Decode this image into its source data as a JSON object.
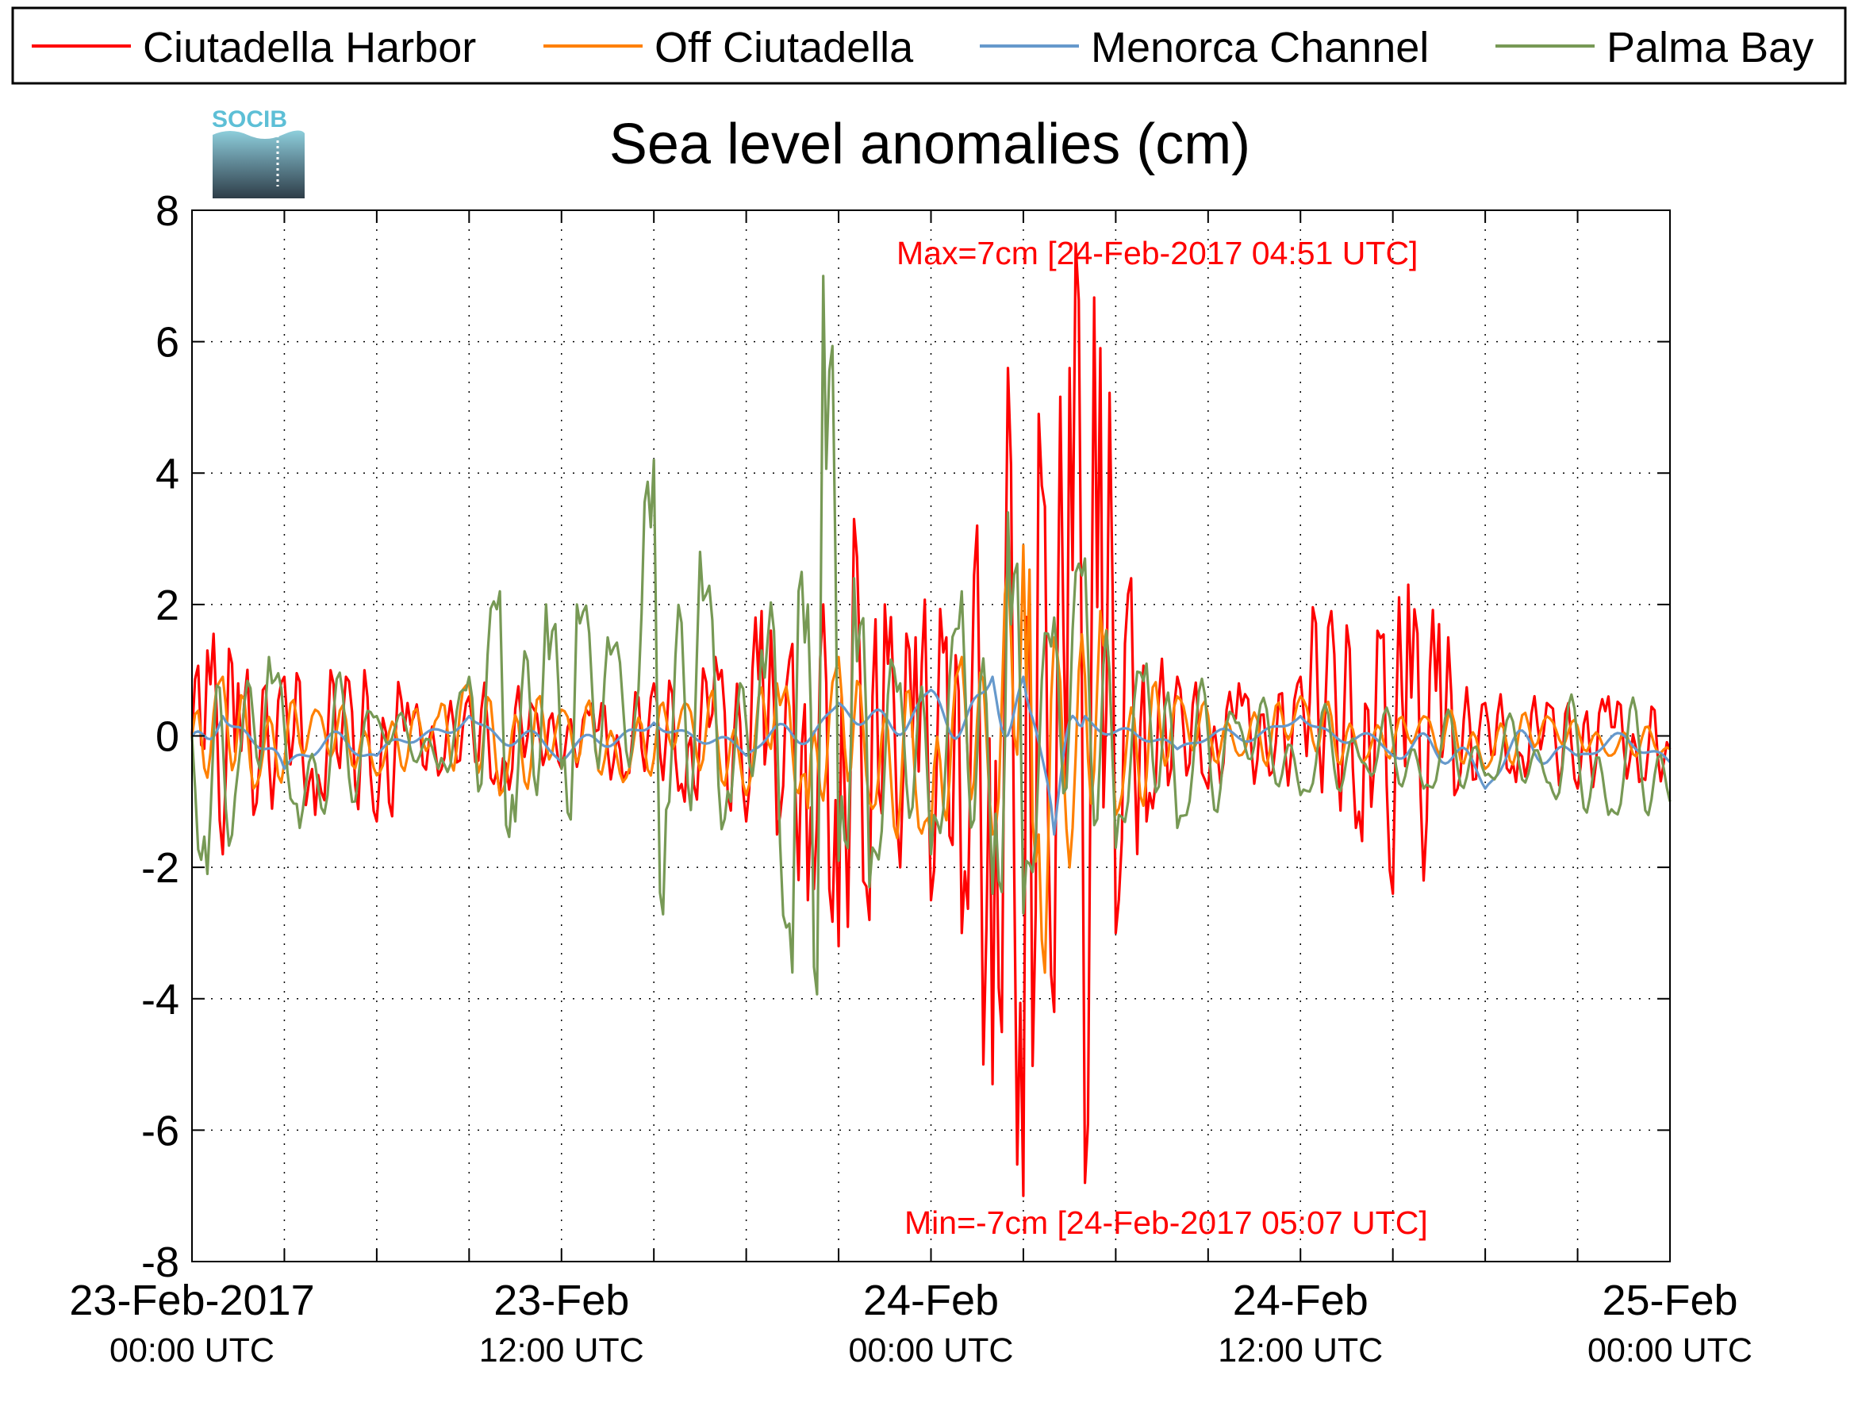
{
  "chart_data": {
    "type": "line",
    "title": "Sea level anomalies (cm)",
    "xlabel": "",
    "ylabel": "",
    "ylim": [
      -8,
      8
    ],
    "xlim": [
      "2017-02-23 00:00 UTC",
      "2017-02-25 00:00 UTC"
    ],
    "yticks": [
      "8",
      "6",
      "4",
      "2",
      "0",
      "-2",
      "-4",
      "-6",
      "-8"
    ],
    "xticks": [
      {
        "date": "23-Feb-2017",
        "time": "00:00 UTC"
      },
      {
        "date": "23-Feb",
        "time": "12:00 UTC"
      },
      {
        "date": "24-Feb",
        "time": "00:00 UTC"
      },
      {
        "date": "24-Feb",
        "time": "12:00 UTC"
      },
      {
        "date": "25-Feb",
        "time": "00:00 UTC"
      }
    ],
    "grid": true,
    "legend_position": "top",
    "annotations": {
      "max": "Max=7cm [24-Feb-2017 04:51 UTC]",
      "min": "Min=-7cm [24-Feb-2017 05:07 UTC]"
    },
    "series": [
      {
        "name": "Ciutadella Harbor",
        "color": "#ff0000",
        "points": [
          [
            "2017-02-23 00:00",
            0.0
          ],
          [
            "2017-02-23 00:30",
            1.3
          ],
          [
            "2017-02-23 01:00",
            -1.8
          ],
          [
            "2017-02-23 01:30",
            0.8
          ],
          [
            "2017-02-23 02:00",
            -1.2
          ],
          [
            "2017-02-23 03:00",
            0.9
          ],
          [
            "2017-02-23 04:00",
            -1.2
          ],
          [
            "2017-02-23 05:00",
            0.9
          ],
          [
            "2017-02-23 06:00",
            -1.3
          ],
          [
            "2017-02-23 07:00",
            0.5
          ],
          [
            "2017-02-23 08:00",
            -0.6
          ],
          [
            "2017-02-23 09:00",
            0.6
          ],
          [
            "2017-02-23 10:00",
            -0.9
          ],
          [
            "2017-02-23 11:00",
            0.5
          ],
          [
            "2017-02-23 12:00",
            -0.5
          ],
          [
            "2017-02-23 13:00",
            0.5
          ],
          [
            "2017-02-23 14:00",
            -0.7
          ],
          [
            "2017-02-23 15:00",
            0.8
          ],
          [
            "2017-02-23 16:00",
            -1.0
          ],
          [
            "2017-02-23 17:00",
            1.2
          ],
          [
            "2017-02-23 18:00",
            -1.3
          ],
          [
            "2017-02-23 18:30",
            1.9
          ],
          [
            "2017-02-23 19:00",
            -1.5
          ],
          [
            "2017-02-23 19:30",
            1.4
          ],
          [
            "2017-02-23 20:00",
            -2.5
          ],
          [
            "2017-02-23 20:30",
            2.0
          ],
          [
            "2017-02-23 21:00",
            -3.2
          ],
          [
            "2017-02-23 21:30",
            3.3
          ],
          [
            "2017-02-23 22:00",
            -2.8
          ],
          [
            "2017-02-23 22:30",
            2.0
          ],
          [
            "2017-02-23 23:00",
            -2.0
          ],
          [
            "2017-02-23 23:30",
            1.5
          ],
          [
            "2017-02-24 00:00",
            -2.5
          ],
          [
            "2017-02-24 00:30",
            1.5
          ],
          [
            "2017-02-24 01:00",
            -3.0
          ],
          [
            "2017-02-24 01:30",
            3.2
          ],
          [
            "2017-02-24 02:00",
            -5.3
          ],
          [
            "2017-02-24 02:30",
            5.6
          ],
          [
            "2017-02-24 03:00",
            -7.0
          ],
          [
            "2017-02-24 03:30",
            4.9
          ],
          [
            "2017-02-24 04:00",
            -4.2
          ],
          [
            "2017-02-24 04:30",
            5.6
          ],
          [
            "2017-02-24 04:51",
            6.9
          ],
          [
            "2017-02-24 05:07",
            -7.3
          ],
          [
            "2017-02-24 05:30",
            5.9
          ],
          [
            "2017-02-24 06:00",
            -3.0
          ],
          [
            "2017-02-24 06:30",
            2.4
          ],
          [
            "2017-02-24 07:00",
            -1.3
          ],
          [
            "2017-02-24 08:00",
            0.9
          ],
          [
            "2017-02-24 09:00",
            -0.8
          ],
          [
            "2017-02-24 10:00",
            0.8
          ],
          [
            "2017-02-24 11:00",
            -0.6
          ],
          [
            "2017-02-24 12:00",
            0.9
          ],
          [
            "2017-02-24 13:00",
            1.9
          ],
          [
            "2017-02-24 14:00",
            -1.6
          ],
          [
            "2017-02-24 14:30",
            1.6
          ],
          [
            "2017-02-24 15:00",
            -2.4
          ],
          [
            "2017-02-24 15:30",
            2.3
          ],
          [
            "2017-02-24 16:00",
            -2.2
          ],
          [
            "2017-02-24 16:30",
            1.7
          ],
          [
            "2017-02-24 17:00",
            -0.9
          ],
          [
            "2017-02-24 18:00",
            0.5
          ],
          [
            "2017-02-24 19:00",
            -0.7
          ],
          [
            "2017-02-24 20:00",
            0.5
          ],
          [
            "2017-02-24 21:00",
            -0.8
          ],
          [
            "2017-02-24 22:00",
            0.6
          ],
          [
            "2017-02-24 23:00",
            -0.7
          ],
          [
            "2017-02-25 00:00",
            -0.2
          ]
        ]
      },
      {
        "name": "Off Ciutadella",
        "color": "#ff8000",
        "points": [
          [
            "2017-02-23 00:00",
            0.0
          ],
          [
            "2017-02-23 01:00",
            0.9
          ],
          [
            "2017-02-23 02:00",
            -0.8
          ],
          [
            "2017-02-23 04:00",
            0.4
          ],
          [
            "2017-02-23 06:00",
            -0.6
          ],
          [
            "2017-02-23 08:00",
            0.3
          ],
          [
            "2017-02-23 09:00",
            0.8
          ],
          [
            "2017-02-23 10:00",
            -0.9
          ],
          [
            "2017-02-23 12:00",
            0.4
          ],
          [
            "2017-02-23 14:00",
            -0.7
          ],
          [
            "2017-02-23 16:00",
            0.5
          ],
          [
            "2017-02-23 18:00",
            -0.9
          ],
          [
            "2017-02-23 19:00",
            0.8
          ],
          [
            "2017-02-23 20:00",
            -1.1
          ],
          [
            "2017-02-23 21:00",
            1.2
          ],
          [
            "2017-02-23 22:00",
            -1.0
          ],
          [
            "2017-02-24 00:00",
            -1.5
          ],
          [
            "2017-02-24 01:00",
            1.2
          ],
          [
            "2017-02-24 02:00",
            -1.5
          ],
          [
            "2017-02-24 03:00",
            2.9
          ],
          [
            "2017-02-24 03:20",
            -4.0
          ],
          [
            "2017-02-24 04:00",
            1.5
          ],
          [
            "2017-02-24 04:30",
            -2.0
          ],
          [
            "2017-02-24 05:30",
            1.9
          ],
          [
            "2017-02-24 06:00",
            -1.2
          ],
          [
            "2017-02-24 08:00",
            0.6
          ],
          [
            "2017-02-24 10:00",
            -0.3
          ],
          [
            "2017-02-24 12:00",
            0.6
          ],
          [
            "2017-02-24 14:00",
            -0.4
          ],
          [
            "2017-02-24 16:00",
            0.3
          ],
          [
            "2017-02-24 18:00",
            -0.5
          ],
          [
            "2017-02-24 20:00",
            0.3
          ],
          [
            "2017-02-24 22:00",
            -0.3
          ],
          [
            "2017-02-25 00:00",
            -0.2
          ]
        ]
      },
      {
        "name": "Menorca Channel",
        "color": "#6699cc",
        "points": [
          [
            "2017-02-23 00:00",
            0.0
          ],
          [
            "2017-02-23 01:00",
            0.3
          ],
          [
            "2017-02-23 03:00",
            -0.5
          ],
          [
            "2017-02-23 06:00",
            -0.3
          ],
          [
            "2017-02-23 09:00",
            0.3
          ],
          [
            "2017-02-23 12:00",
            -0.4
          ],
          [
            "2017-02-23 15:00",
            0.2
          ],
          [
            "2017-02-23 18:00",
            -0.3
          ],
          [
            "2017-02-23 21:00",
            0.5
          ],
          [
            "2017-02-24 00:00",
            0.7
          ],
          [
            "2017-02-24 02:00",
            0.9
          ],
          [
            "2017-02-24 03:00",
            0.9
          ],
          [
            "2017-02-24 04:00",
            -1.5
          ],
          [
            "2017-02-24 05:00",
            0.3
          ],
          [
            "2017-02-24 08:00",
            -0.2
          ],
          [
            "2017-02-24 12:00",
            0.3
          ],
          [
            "2017-02-24 15:00",
            -0.3
          ],
          [
            "2017-02-24 18:00",
            -0.8
          ],
          [
            "2017-02-24 21:00",
            -0.3
          ],
          [
            "2017-02-25 00:00",
            -0.4
          ]
        ]
      },
      {
        "name": "Palma Bay",
        "color": "#779955",
        "points": [
          [
            "2017-02-23 00:00",
            0.0
          ],
          [
            "2017-02-23 00:30",
            -2.1
          ],
          [
            "2017-02-23 01:30",
            -0.5
          ],
          [
            "2017-02-23 02:30",
            1.2
          ],
          [
            "2017-02-23 03:30",
            -1.4
          ],
          [
            "2017-02-23 06:00",
            0.3
          ],
          [
            "2017-02-23 08:00",
            -0.5
          ],
          [
            "2017-02-23 09:00",
            0.9
          ],
          [
            "2017-02-23 10:00",
            2.2
          ],
          [
            "2017-02-23 10:30",
            -1.3
          ],
          [
            "2017-02-23 11:30",
            2.0
          ],
          [
            "2017-02-23 12:00",
            -0.5
          ],
          [
            "2017-02-23 12:30",
            2.0
          ],
          [
            "2017-02-23 13:30",
            1.5
          ],
          [
            "2017-02-23 14:30",
            0.7
          ],
          [
            "2017-02-23 15:00",
            4.2
          ],
          [
            "2017-02-23 15:30",
            -1.0
          ],
          [
            "2017-02-23 16:30",
            2.8
          ],
          [
            "2017-02-23 17:30",
            -1.0
          ],
          [
            "2017-02-23 18:30",
            1.3
          ],
          [
            "2017-02-23 19:30",
            -3.6
          ],
          [
            "2017-02-23 20:00",
            2.0
          ],
          [
            "2017-02-23 20:30",
            7.0
          ],
          [
            "2017-02-23 21:00",
            -1.9
          ],
          [
            "2017-02-23 21:30",
            2.4
          ],
          [
            "2017-02-23 22:00",
            -2.3
          ],
          [
            "2017-02-23 23:00",
            0.8
          ],
          [
            "2017-02-24 00:00",
            -1.8
          ],
          [
            "2017-02-24 01:00",
            2.2
          ],
          [
            "2017-02-24 02:00",
            -2.4
          ],
          [
            "2017-02-24 02:30",
            3.4
          ],
          [
            "2017-02-24 03:00",
            -2.7
          ],
          [
            "2017-02-24 04:00",
            1.8
          ],
          [
            "2017-02-24 05:00",
            2.7
          ],
          [
            "2017-02-24 06:00",
            -1.7
          ],
          [
            "2017-02-24 07:00",
            1.1
          ],
          [
            "2017-02-24 08:00",
            -1.4
          ],
          [
            "2017-02-24 10:00",
            0.2
          ],
          [
            "2017-02-24 12:00",
            -0.9
          ],
          [
            "2017-02-24 14:00",
            -0.4
          ],
          [
            "2017-02-24 16:00",
            -0.8
          ],
          [
            "2017-02-24 18:00",
            -0.6
          ],
          [
            "2017-02-24 20:00",
            -0.7
          ],
          [
            "2017-02-24 22:00",
            -1.2
          ],
          [
            "2017-02-25 00:00",
            -1.0
          ]
        ]
      }
    ]
  },
  "logo": {
    "text": "SOCIB"
  }
}
